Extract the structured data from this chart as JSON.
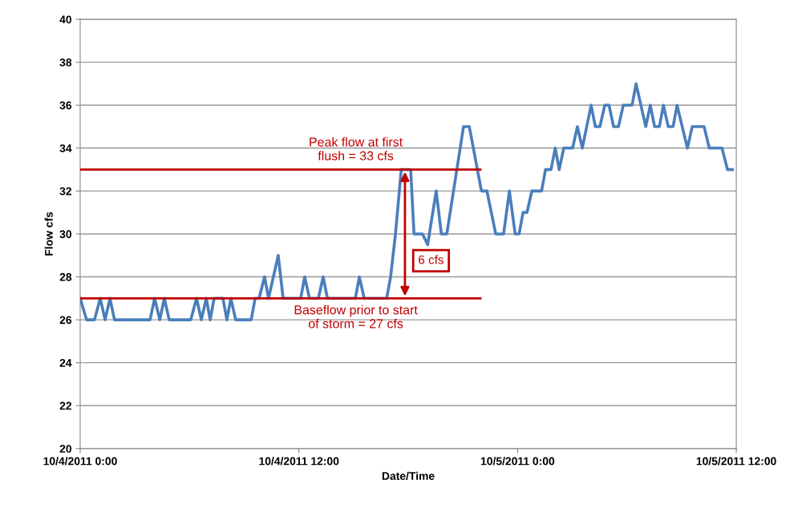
{
  "chart_data": {
    "type": "line",
    "xlabel": "Date/Time",
    "ylabel": "Flow cfs",
    "x": [
      "2011-10-04T00:00",
      "2011-10-04T00:21",
      "2011-10-04T00:47",
      "2011-10-04T01:06",
      "2011-10-04T01:22",
      "2011-10-04T01:38",
      "2011-10-04T01:53",
      "2011-10-04T03:50",
      "2011-10-04T04:05",
      "2011-10-04T04:22",
      "2011-10-04T04:37",
      "2011-10-04T04:53",
      "2011-10-04T06:04",
      "2011-10-04T06:23",
      "2011-10-04T06:39",
      "2011-10-04T06:55",
      "2011-10-04T07:08",
      "2011-10-04T07:21",
      "2011-10-04T07:50",
      "2011-10-04T08:03",
      "2011-10-04T08:16",
      "2011-10-04T08:32",
      "2011-10-04T09:23",
      "2011-10-04T09:36",
      "2011-10-04T09:49",
      "2011-10-04T10:07",
      "2011-10-04T10:20",
      "2011-10-04T10:52",
      "2011-10-04T11:08",
      "2011-10-04T12:06",
      "2011-10-04T12:19",
      "2011-10-04T12:35",
      "2011-10-04T13:04",
      "2011-10-04T13:20",
      "2011-10-04T13:34",
      "2011-10-04T15:06",
      "2011-10-04T15:19",
      "2011-10-04T15:35",
      "2011-10-04T16:49",
      "2011-10-04T17:02",
      "2011-10-04T17:18",
      "2011-10-04T17:37",
      "2011-10-04T18:08",
      "2011-10-04T18:19",
      "2011-10-04T18:47",
      "2011-10-04T19:04",
      "2011-10-04T19:32",
      "2011-10-04T19:49",
      "2011-10-04T20:07",
      "2011-10-04T21:02",
      "2011-10-04T21:21",
      "2011-10-04T22:01",
      "2011-10-04T22:19",
      "2011-10-04T22:48",
      "2011-10-04T23:14",
      "2011-10-04T23:33",
      "2011-10-04T23:52",
      "2011-10-05T00:05",
      "2011-10-05T00:18",
      "2011-10-05T00:31",
      "2011-10-05T00:47",
      "2011-10-05T01:19",
      "2011-10-05T01:32",
      "2011-10-05T01:50",
      "2011-10-05T02:04",
      "2011-10-05T02:17",
      "2011-10-05T02:32",
      "2011-10-05T03:01",
      "2011-10-05T03:17",
      "2011-10-05T03:33",
      "2011-10-05T04:02",
      "2011-10-05T04:16",
      "2011-10-05T04:31",
      "2011-10-05T04:47",
      "2011-10-05T05:01",
      "2011-10-05T05:16",
      "2011-10-05T05:32",
      "2011-10-05T05:48",
      "2011-10-05T06:17",
      "2011-10-05T06:30",
      "2011-10-05T07:02",
      "2011-10-05T07:17",
      "2011-10-05T07:31",
      "2011-10-05T07:47",
      "2011-10-05T08:00",
      "2011-10-05T08:16",
      "2011-10-05T08:32",
      "2011-10-05T08:45",
      "2011-10-05T09:19",
      "2011-10-05T09:35",
      "2011-10-05T10:14",
      "2011-10-05T10:31",
      "2011-10-05T11:13",
      "2011-10-05T11:31",
      "2011-10-05T11:47"
    ],
    "series": [
      {
        "color": "#4a7ebb",
        "values": [
          27,
          26,
          26,
          27,
          26,
          27,
          26,
          26,
          27,
          26,
          27,
          26,
          26,
          27,
          26,
          27,
          26,
          27,
          27,
          26,
          27,
          26,
          26,
          27,
          27,
          28,
          27,
          29,
          27,
          27,
          28,
          27,
          27,
          28,
          27,
          27,
          28,
          27,
          27,
          28,
          30,
          33,
          33,
          30,
          30,
          29.5,
          32,
          30,
          30,
          35,
          35,
          32,
          32,
          30,
          30,
          32,
          30,
          30,
          31,
          31,
          32,
          32,
          33,
          33,
          34,
          33,
          34,
          34,
          35,
          34,
          36,
          35,
          35,
          36,
          36,
          35,
          35,
          36,
          36,
          37,
          35,
          36,
          35,
          35,
          36,
          35,
          35,
          36,
          34,
          35,
          35,
          34,
          34,
          33,
          33
        ]
      }
    ],
    "xlim": [
      "2011-10-04T00:00",
      "2011-10-05T12:00"
    ],
    "xticks": [
      {
        "value": "2011-10-04T00:00",
        "label": "10/4/2011 0:00"
      },
      {
        "value": "2011-10-04T12:00",
        "label": "10/4/2011 12:00"
      },
      {
        "value": "2011-10-05T00:00",
        "label": "10/5/2011 0:00"
      },
      {
        "value": "2011-10-05T12:00",
        "label": "10/5/2011 12:00"
      }
    ],
    "ylim": [
      20,
      40
    ],
    "yticks": [
      20,
      22,
      24,
      26,
      28,
      30,
      32,
      34,
      36,
      38,
      40
    ],
    "grid": "y",
    "line_style": "solid",
    "marker": "none",
    "ref_lines": [
      {
        "axis": "y",
        "value": 33,
        "label": "Peak flow at first\nflush = 33 cfs",
        "color": "#c00000"
      },
      {
        "axis": "y",
        "value": 27,
        "label": "Baseflow prior to start\nof storm = 27 cfs",
        "color": "#c00000"
      }
    ],
    "annotations": [
      "6 cfs"
    ]
  }
}
